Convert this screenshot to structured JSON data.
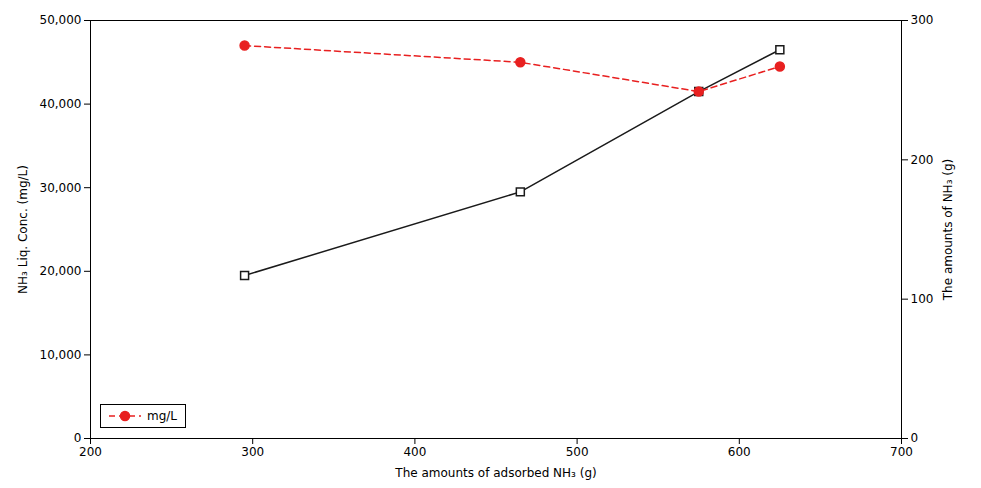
{
  "chart_data": {
    "type": "line",
    "xlabel": "The amounts of adsorbed NH₃ (g)",
    "ylabel": "NH₃ Liq. Conc. (mg/L)",
    "y2label": "The amounts of NH₃ (g)",
    "x": [
      295,
      465,
      575,
      625
    ],
    "series": [
      {
        "color": "#1a1a1a",
        "marker": "square_open",
        "line_style": "solid",
        "values": [
          19500,
          29500,
          41500,
          46500
        ]
      },
      {
        "name": "mg/L",
        "color": "#e82020",
        "marker": "circle",
        "line_style": "dashed",
        "values": [
          47000,
          45000,
          41500,
          44500
        ]
      }
    ],
    "xlim": [
      200,
      700
    ],
    "xticks": [
      200,
      300,
      400,
      500,
      600,
      700
    ],
    "ylim": [
      0,
      50000
    ],
    "yticks": [
      0,
      {
        "value": 10000,
        "label": "10,000"
      },
      {
        "value": 20000,
        "label": "20,000"
      },
      {
        "value": 30000,
        "label": "30,000"
      },
      {
        "value": 40000,
        "label": "40,000"
      },
      {
        "value": 50000,
        "label": "50,000"
      }
    ],
    "y2lim": [
      0,
      300
    ],
    "y2ticks": [
      0,
      100,
      200,
      300
    ],
    "grid": false,
    "legend": "lower left"
  }
}
